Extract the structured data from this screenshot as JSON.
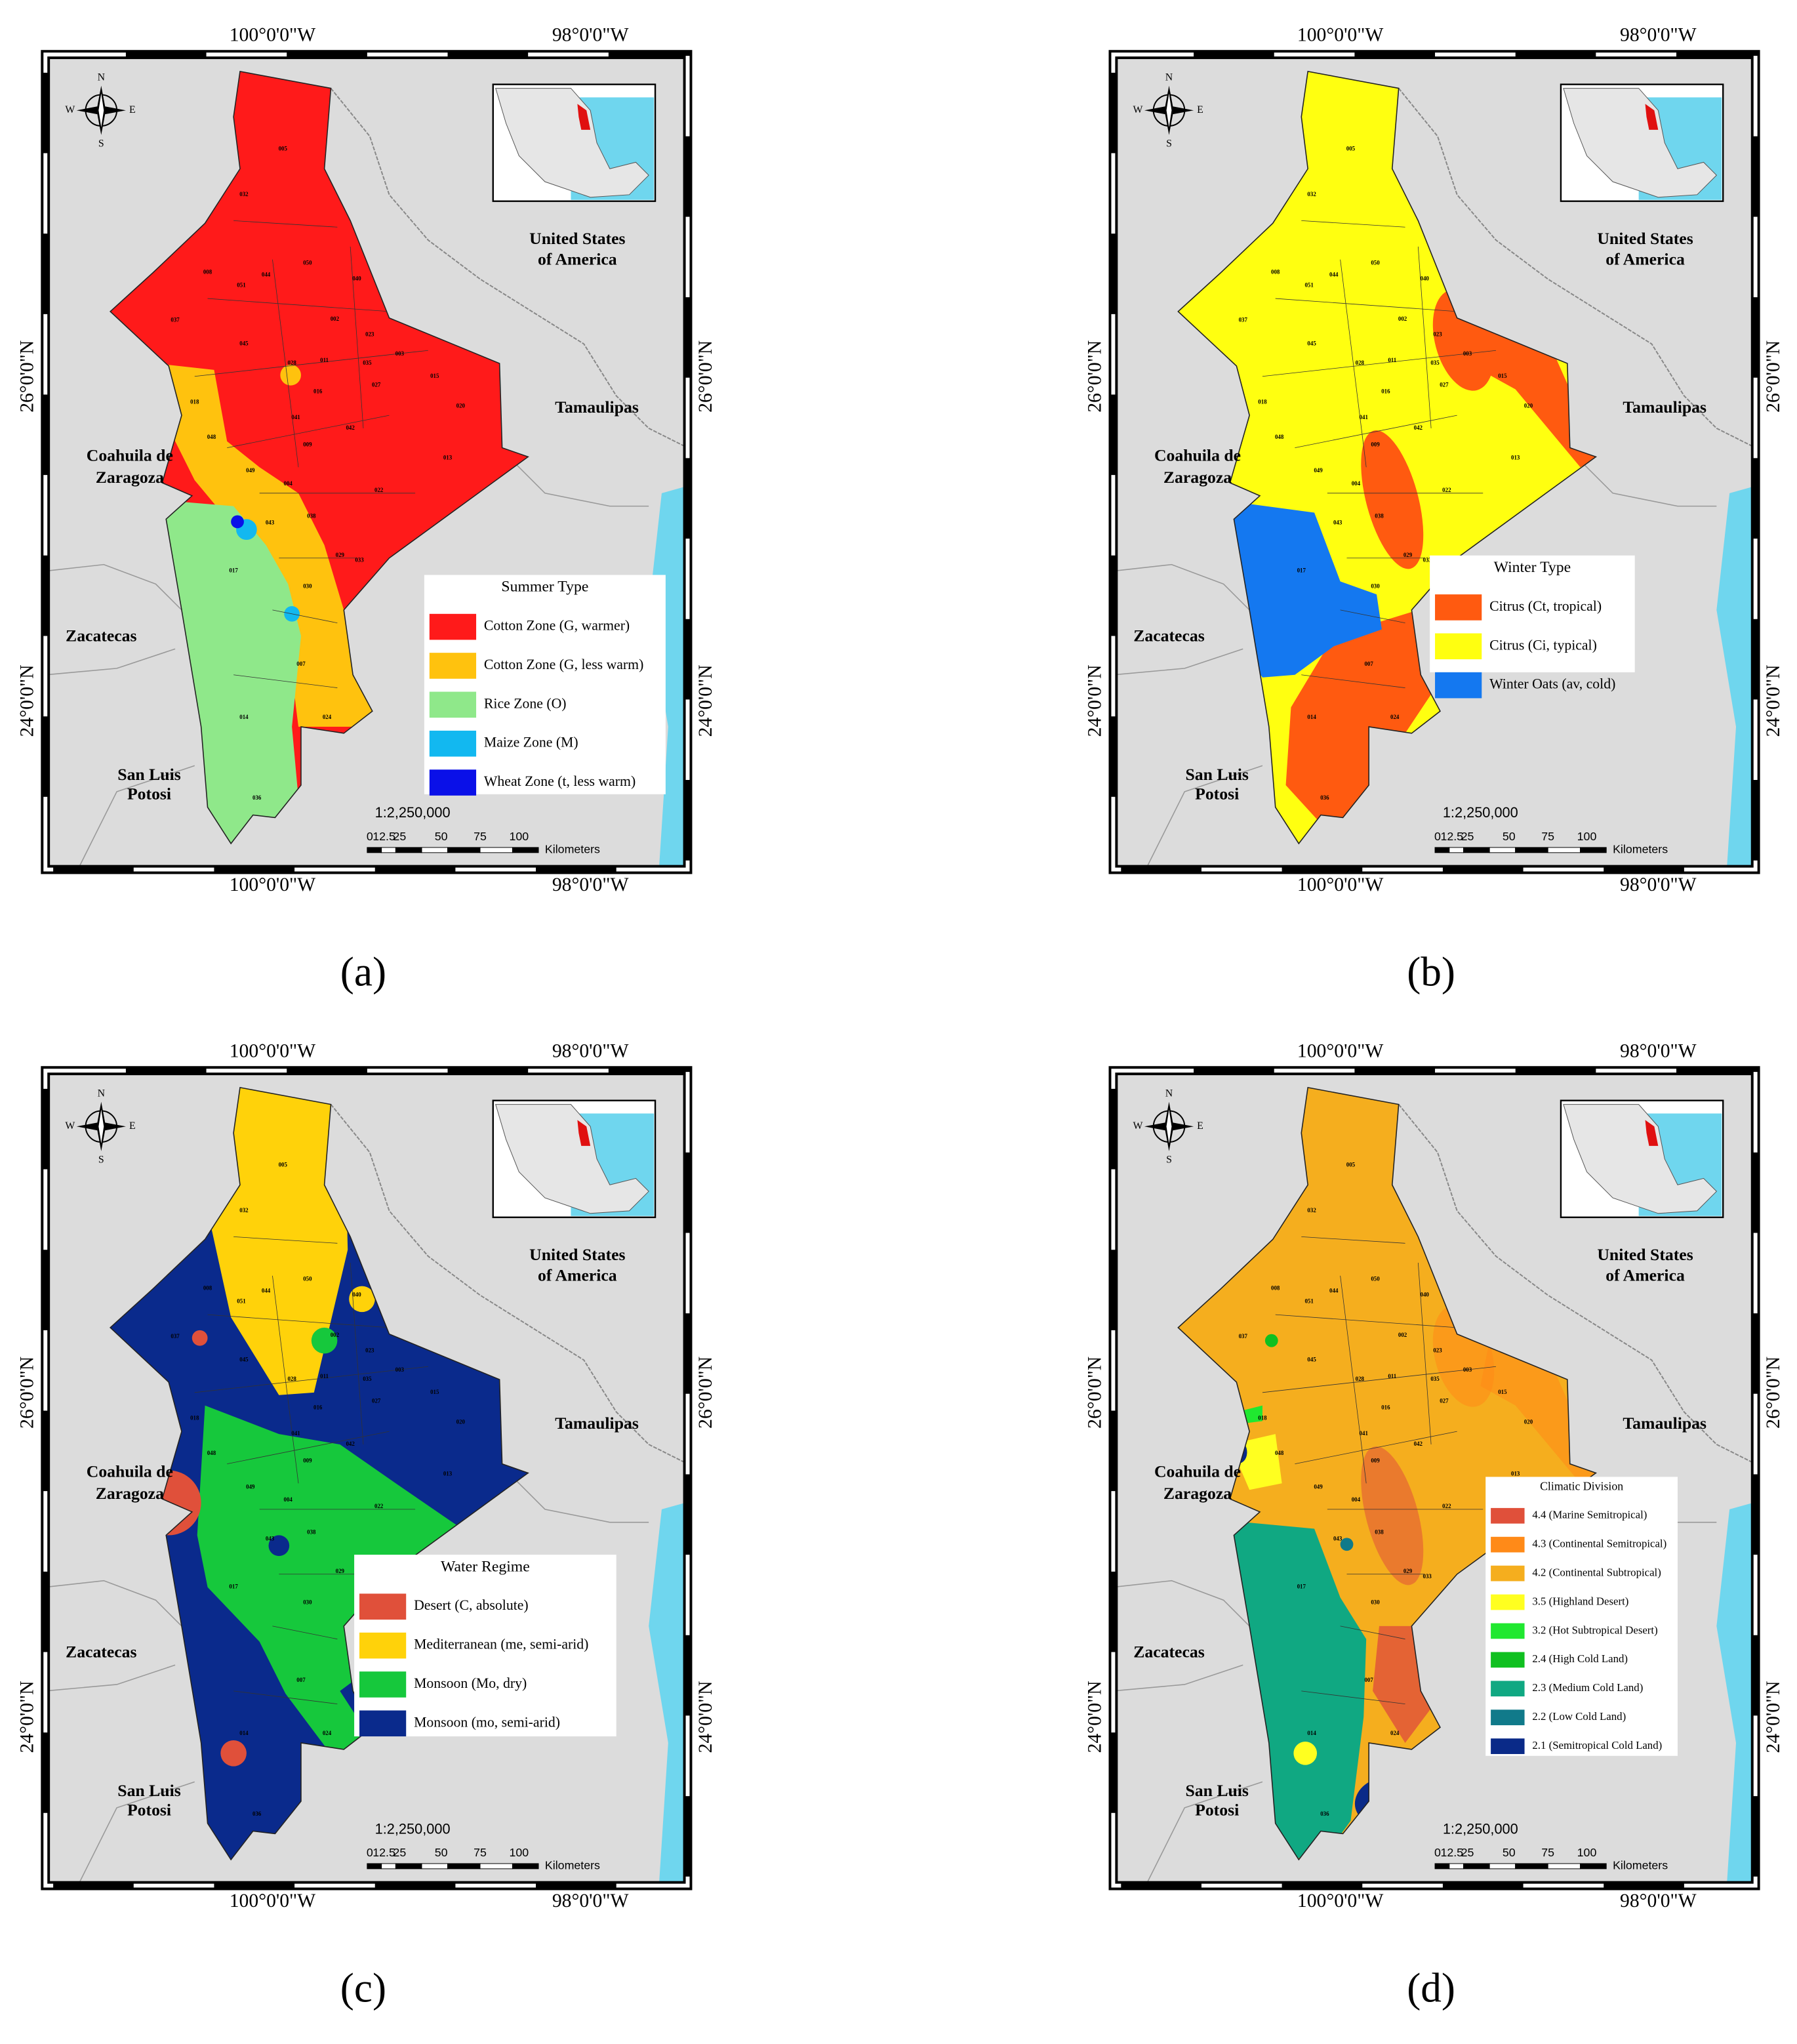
{
  "map_labels": {
    "lon_west": "100°0'0\"W",
    "lon_east": "98°0'0\"W",
    "lat_north": "26°0'0\"N",
    "lat_south": "24°0'0\"N",
    "usa": [
      "United States",
      "of America"
    ],
    "tamaulipas": "Tamaulipas",
    "coahuila": [
      "Coahuila de",
      "Zaragoza"
    ],
    "zacatecas": "Zacatecas",
    "slp": [
      "San Luis",
      "Potosi"
    ],
    "scale": "1:2,250,000",
    "scale_ticks": [
      "0",
      "12.5",
      "25",
      "50",
      "75",
      "100"
    ],
    "units": "Kilometers",
    "compass": [
      "N",
      "S",
      "E",
      "W"
    ]
  },
  "municipality_codes": [
    "005",
    "032",
    "008",
    "051",
    "044",
    "050",
    "040",
    "037",
    "045",
    "002",
    "028",
    "011",
    "023",
    "003",
    "035",
    "015",
    "027",
    "016",
    "020",
    "042",
    "013",
    "009",
    "022",
    "004",
    "049",
    "043",
    "038",
    "029",
    "033",
    "017",
    "030",
    "007",
    "014",
    "024",
    "036",
    "018",
    "048",
    "041"
  ],
  "panels": [
    {
      "label": "(a)",
      "legend_title": "Summer Type",
      "legend": [
        {
          "name": "Cotton Zone (G, warmer)",
          "color": "#ff1a1a"
        },
        {
          "name": "Cotton Zone (G, less warm)",
          "color": "#ffc20e"
        },
        {
          "name": "Rice Zone (O)",
          "color": "#8fe88a"
        },
        {
          "name": "Maize Zone (M)",
          "color": "#12b8f0"
        },
        {
          "name": "Wheat Zone (t, less warm)",
          "color": "#0a10e8"
        }
      ]
    },
    {
      "label": "(b)",
      "legend_title": "Winter Type",
      "legend": [
        {
          "name": "Citrus (Ct, tropical)",
          "color": "#ff5a10"
        },
        {
          "name": "Citrus (Ci, typical)",
          "color": "#ffff10"
        },
        {
          "name": "Winter Oats (av, cold)",
          "color": "#1478f0"
        }
      ]
    },
    {
      "label": "(c)",
      "legend_title": "Water Regime",
      "legend": [
        {
          "name": "Desert (C, absolute)",
          "color": "#e0503a"
        },
        {
          "name": "Mediterranean (me, semi-arid)",
          "color": "#ffd20a"
        },
        {
          "name": "Monsoon (Mo, dry)",
          "color": "#16c83c"
        },
        {
          "name": "Monsoon (mo, semi-arid)",
          "color": "#0a2a8c"
        }
      ]
    },
    {
      "label": "(d)",
      "legend_title": "Climatic Division",
      "legend": [
        {
          "name": "4.4 (Marine Semitropical)",
          "color": "#e0503a"
        },
        {
          "name": "4.3 (Continental Semitropical)",
          "color": "#ff8a18"
        },
        {
          "name": "4.2 (Continental Subtropical)",
          "color": "#f5ae1e"
        },
        {
          "name": "3.5 (Highland Desert)",
          "color": "#ffff20"
        },
        {
          "name": "3.2 (Hot Subtropical Desert)",
          "color": "#20e830"
        },
        {
          "name": "2.4 (High Cold Land)",
          "color": "#10c020"
        },
        {
          "name": "2.3 (Medium Cold Land)",
          "color": "#10a882"
        },
        {
          "name": "2.2 (Low Cold Land)",
          "color": "#107a8a"
        },
        {
          "name": "2.1 (Semitropical Cold Land)",
          "color": "#0a2a88"
        }
      ]
    }
  ]
}
